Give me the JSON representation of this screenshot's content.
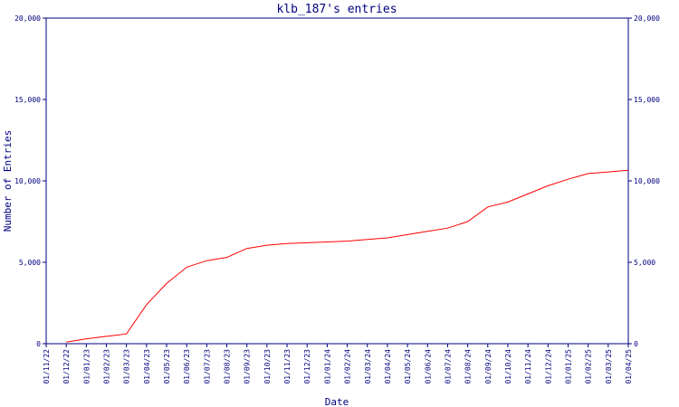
{
  "chart_data": {
    "type": "line",
    "title": "klb_187's entries",
    "xlabel": "Date",
    "ylabel": "Number of Entries",
    "ylim": [
      0,
      20000
    ],
    "yticks": [
      0,
      5000,
      10000,
      15000,
      20000
    ],
    "ytick_labels": [
      "0",
      "5,000",
      "10,000",
      "15,000",
      "20,000"
    ],
    "x_tick_labels": [
      "01/11/22",
      "01/12/22",
      "01/01/23",
      "01/02/23",
      "01/03/23",
      "01/04/23",
      "01/05/23",
      "01/06/23",
      "01/07/23",
      "01/08/23",
      "01/09/23",
      "01/10/23",
      "01/11/23",
      "01/12/23",
      "01/01/24",
      "01/02/24",
      "01/03/24",
      "01/04/24",
      "01/05/24",
      "01/06/24",
      "01/07/24",
      "01/08/24",
      "01/09/24",
      "01/10/24",
      "01/11/24",
      "01/12/24",
      "01/01/25",
      "01/02/25",
      "01/03/25",
      "01/04/25"
    ],
    "grid": false,
    "line_color": "#ff0000",
    "axis_color": "#000080",
    "series": [
      {
        "x": [
          "01/12/22",
          "01/01/23",
          "01/02/23",
          "01/03/23",
          "01/04/23",
          "01/05/23",
          "01/06/23",
          "01/07/23",
          "01/08/23",
          "01/09/23",
          "01/10/23",
          "01/11/23",
          "01/12/23",
          "01/01/24",
          "01/02/24",
          "01/03/24",
          "01/04/24",
          "01/05/24",
          "01/06/24",
          "01/07/24",
          "01/08/24",
          "01/09/24",
          "01/10/24",
          "01/11/24",
          "01/12/24",
          "01/01/25",
          "01/02/25",
          "01/03/25",
          "01/04/25"
        ],
        "values": [
          100,
          300,
          450,
          600,
          2400,
          3700,
          4700,
          5100,
          5300,
          5850,
          6050,
          6150,
          6200,
          6250,
          6300,
          6400,
          6500,
          6700,
          6900,
          7100,
          7500,
          8400,
          8700,
          9200,
          9700,
          10100,
          10450,
          10550,
          10650
        ]
      }
    ]
  }
}
